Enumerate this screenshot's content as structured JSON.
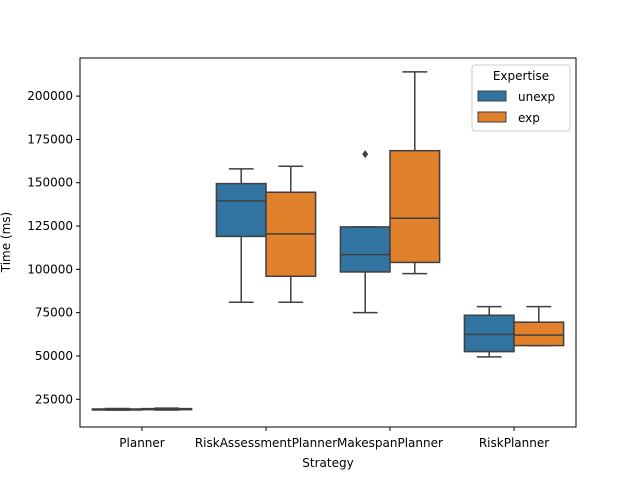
{
  "chart_data": {
    "type": "box",
    "xlabel": "Strategy",
    "ylabel": "Time (ms)",
    "ylim": [
      9000,
      222000
    ],
    "yticks": [
      25000,
      50000,
      75000,
      100000,
      125000,
      150000,
      175000,
      200000
    ],
    "categories": [
      " Planner",
      " RiskAssessmentPlanner",
      " MakespanPlanner",
      " RiskPlanner"
    ],
    "legend": {
      "title": "Expertise",
      "placement": "top-right",
      "entries": [
        {
          "label": " unexp",
          "color": "#3274a1"
        },
        {
          "label": " exp",
          "color": "#e1812c"
        }
      ]
    },
    "series": [
      {
        "name": " unexp",
        "color": "#3274a1",
        "boxes": [
          {
            "whislo": 18800,
            "q1": 19000,
            "med": 19200,
            "q3": 19400,
            "whishi": 19700,
            "fliers": []
          },
          {
            "whislo": 81000,
            "q1": 119000,
            "med": 139500,
            "q3": 149500,
            "whishi": 158000,
            "fliers": []
          },
          {
            "whislo": 75000,
            "q1": 98500,
            "med": 108500,
            "q3": 124500,
            "whishi": 124500,
            "fliers": [
              166500
            ]
          },
          {
            "whislo": 49500,
            "q1": 52500,
            "med": 62500,
            "q3": 73500,
            "whishi": 78500,
            "fliers": []
          }
        ]
      },
      {
        "name": " exp",
        "color": "#e1812c",
        "boxes": [
          {
            "whislo": 18800,
            "q1": 19000,
            "med": 19300,
            "q3": 19600,
            "whishi": 19900,
            "fliers": []
          },
          {
            "whislo": 81000,
            "q1": 96000,
            "med": 120500,
            "q3": 144500,
            "whishi": 159500,
            "fliers": []
          },
          {
            "whislo": 97500,
            "q1": 104000,
            "med": 129500,
            "q3": 168500,
            "whishi": 214000,
            "fliers": []
          },
          {
            "whislo": 56000,
            "q1": 56000,
            "med": 62000,
            "q3": 69500,
            "whishi": 78500,
            "fliers": []
          }
        ]
      }
    ]
  }
}
